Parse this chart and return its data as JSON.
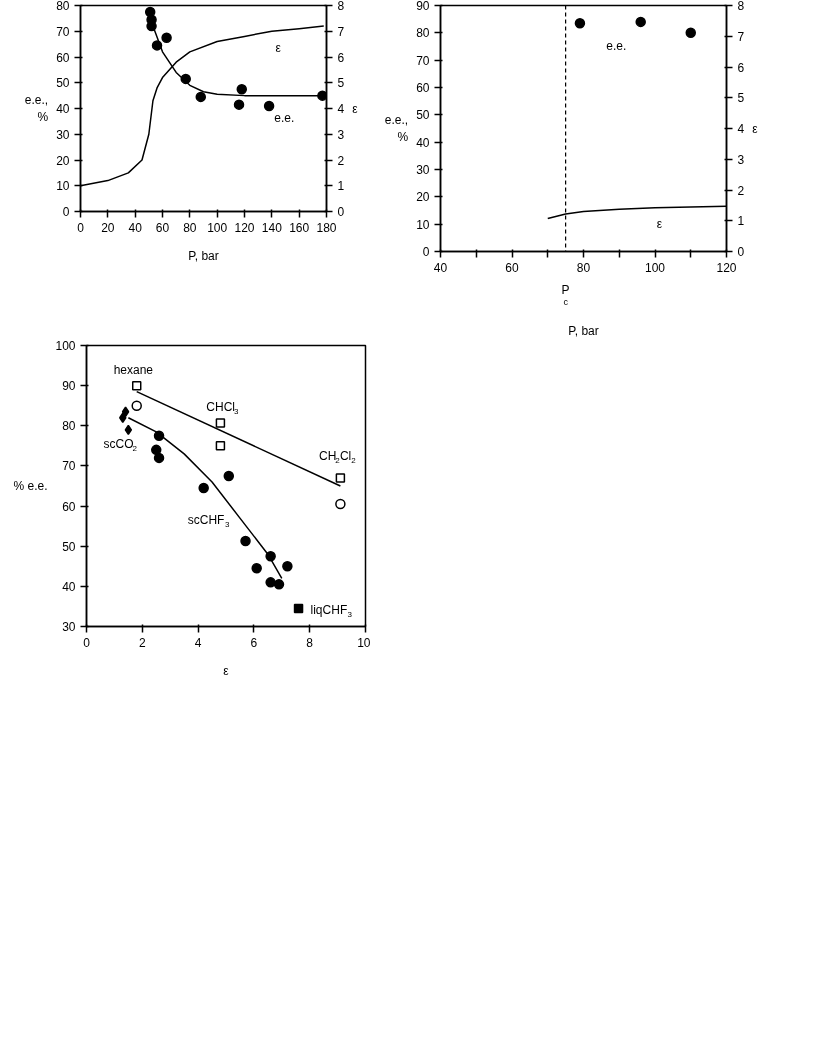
{
  "chart_data": [
    {
      "type": "scatter",
      "xlabel": "P, bar",
      "ylabel": "e.e.,\n%",
      "y2label": "ε",
      "xlim": [
        0,
        180
      ],
      "xticks": [
        0,
        20,
        40,
        60,
        80,
        100,
        120,
        140,
        160,
        180
      ],
      "ylim": [
        0,
        80
      ],
      "yticks": [
        0,
        10,
        20,
        30,
        40,
        50,
        60,
        70,
        80
      ],
      "y2lim": [
        0,
        8
      ],
      "y2ticks": [
        0,
        1,
        2,
        3,
        4,
        5,
        6,
        7,
        8
      ],
      "grid": false,
      "series": [
        {
          "marker": "circle",
          "color": "#000000",
          "x": [
            51,
            52,
            52,
            56,
            63,
            77,
            88,
            116,
            118,
            138,
            177
          ],
          "values": [
            77.5,
            74.5,
            72,
            64.5,
            67.5,
            51.5,
            44.5,
            41.5,
            47.5,
            41,
            45
          ]
        },
        {
          "type": "line",
          "name": "e.e.",
          "color": "#000000",
          "x": [
            53,
            60,
            70,
            80,
            90,
            100,
            120,
            140,
            160,
            178
          ],
          "values": [
            72,
            62,
            54,
            49,
            46.5,
            45.5,
            45,
            45,
            45,
            45
          ]
        },
        {
          "type": "line",
          "name": "ε",
          "axis": "y2",
          "color": "#000000",
          "x": [
            0,
            20,
            35,
            45,
            50,
            53,
            56,
            60,
            70,
            80,
            100,
            120,
            140,
            160,
            178
          ],
          "values": [
            1.0,
            1.2,
            1.5,
            2.0,
            3.0,
            4.3,
            4.8,
            5.2,
            5.8,
            6.2,
            6.6,
            6.8,
            7.0,
            7.1,
            7.2
          ]
        }
      ]
    },
    {
      "type": "scatter",
      "xlabel": "P, bar",
      "ylabel": "e.e.,\n%",
      "y2label": "ε",
      "xlim": [
        40,
        120
      ],
      "xticks": [
        40,
        {
          "value": 50,
          "label": null
        },
        60,
        {
          "value": 70,
          "label": null
        },
        80,
        {
          "value": 90,
          "label": null
        },
        100,
        {
          "value": 110,
          "label": null
        },
        120
      ],
      "ylim": [
        0,
        90
      ],
      "yticks": [
        0,
        10,
        20,
        30,
        40,
        50,
        60,
        70,
        80,
        90
      ],
      "y2lim": [
        0,
        8
      ],
      "y2ticks": [
        0,
        1,
        2,
        3,
        4,
        5,
        6,
        7,
        8
      ],
      "grid": false,
      "series": [
        {
          "name": "e.e.",
          "marker": "circle",
          "color": "#000000",
          "x": [
            79,
            96,
            110
          ],
          "values": [
            83.5,
            84,
            80
          ]
        },
        {
          "type": "line",
          "name": "ε",
          "axis": "y2",
          "color": "#000000",
          "x": [
            70,
            75,
            80,
            90,
            100,
            110,
            120
          ],
          "values": [
            1.07,
            1.22,
            1.3,
            1.37,
            1.42,
            1.45,
            1.47
          ]
        }
      ],
      "ref_lines": [
        {
          "axis": "x",
          "value": 75,
          "label": "P$_{c}$",
          "line_style": "dashed",
          "color": "#000000"
        }
      ]
    },
    {
      "type": "scatter",
      "xlabel": "ε",
      "ylabel": "% e.e.",
      "xlim": [
        0,
        10
      ],
      "xticks": [
        0,
        2,
        4,
        6,
        8,
        10
      ],
      "ylim": [
        30,
        100
      ],
      "yticks": [
        30,
        40,
        50,
        60,
        70,
        80,
        90,
        100
      ],
      "grid": false,
      "series": [
        {
          "name": "scCO$_{2}$",
          "marker": "diamond",
          "color": "#000000",
          "x": [
            1.3,
            1.4,
            1.5
          ],
          "values": [
            82,
            83.5,
            79
          ]
        },
        {
          "name": "scCHF$_{3}$",
          "marker": "circle",
          "color": "#000000",
          "x": [
            2.5,
            2.6,
            2.6,
            4.2,
            5.1,
            5.7,
            6.1,
            6.6,
            6.6,
            6.9,
            7.2
          ],
          "values": [
            74,
            77.5,
            72,
            64.5,
            67.5,
            51.3,
            44.5,
            47.5,
            41,
            40.5,
            45
          ]
        },
        {
          "name": "liqCHF$_{3}$",
          "marker": "square",
          "color": "#000000",
          "x": [
            7.6
          ],
          "values": [
            34.5
          ]
        },
        {
          "name": "hexane",
          "marker": "square",
          "color": "#ffffff",
          "x": [
            1.8
          ],
          "values": [
            90
          ]
        },
        {
          "name": "CHCl$_{3}$",
          "marker": "square",
          "color": "#ffffff",
          "x": [
            4.8,
            4.8
          ],
          "values": [
            80.7,
            75
          ]
        },
        {
          "name": "CH$_{2}$Cl$_{2}$",
          "marker": "square",
          "color": "#ffffff",
          "x": [
            9.1
          ],
          "values": [
            67
          ]
        },
        {
          "marker": "circle",
          "color": "#ffffff",
          "x": [
            1.8,
            9.1
          ],
          "values": [
            85,
            60.5
          ]
        },
        {
          "type": "line",
          "color": "#000000",
          "x": [
            1.8,
            9.1
          ],
          "values": [
            88.5,
            65
          ]
        },
        {
          "type": "line",
          "color": "#000000",
          "x": [
            1.5,
            2.5,
            3.5,
            4.5,
            5.5,
            6.5,
            7.0
          ],
          "values": [
            82,
            78.5,
            73,
            66,
            57,
            48,
            42
          ]
        }
      ]
    }
  ]
}
